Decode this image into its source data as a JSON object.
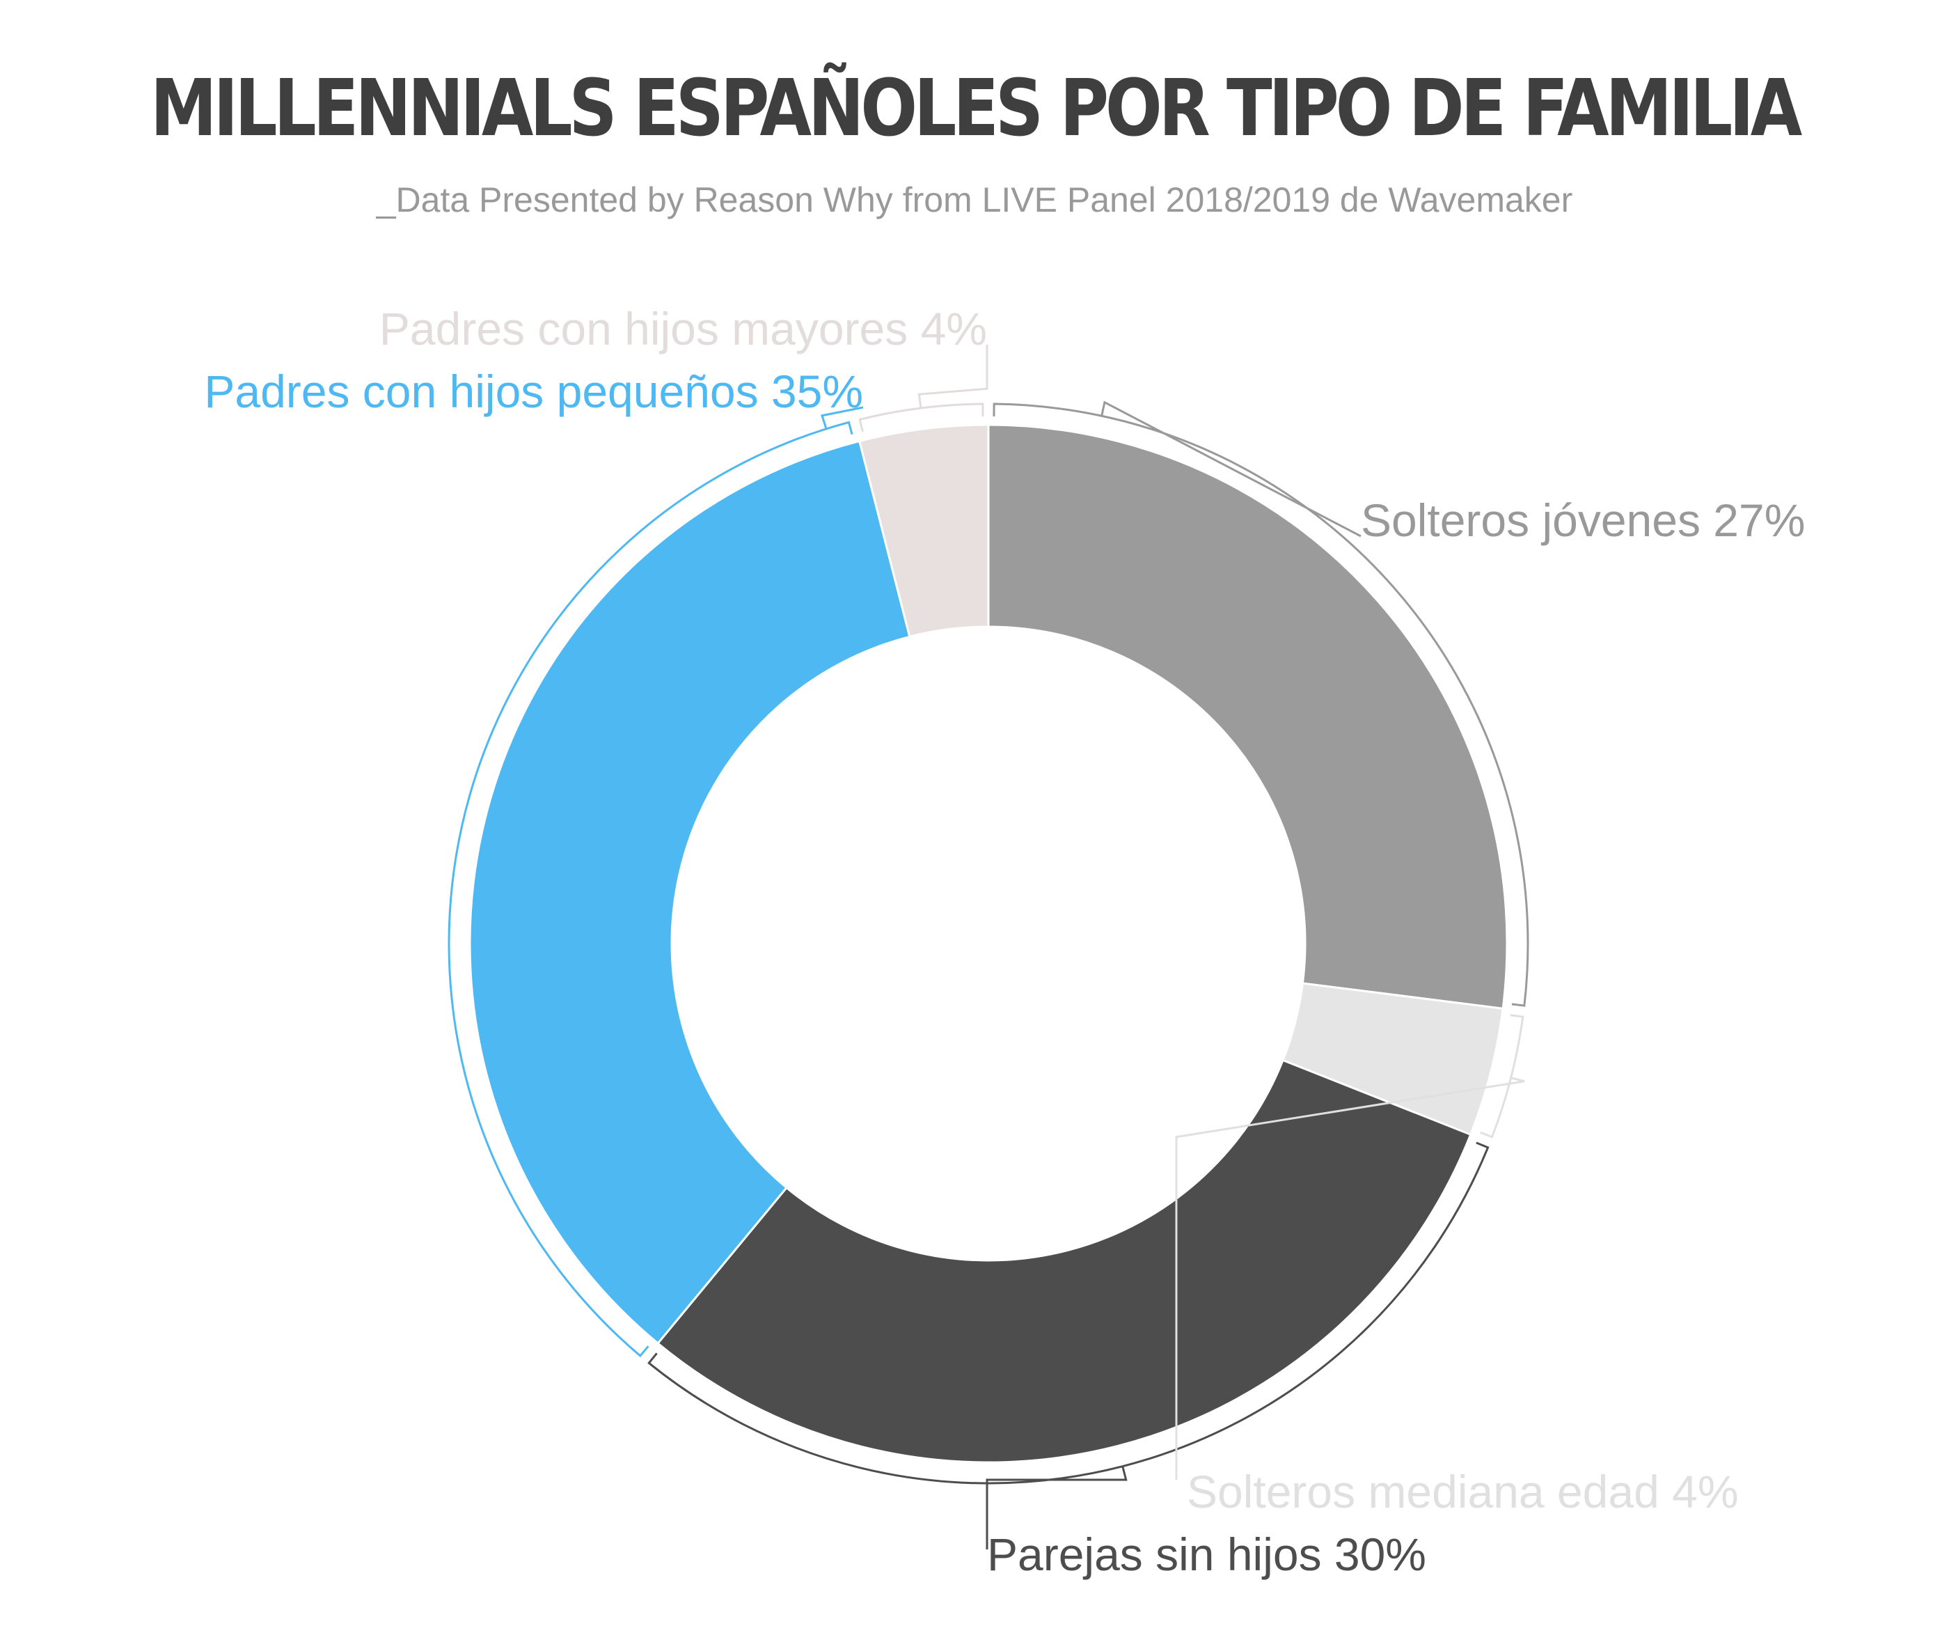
{
  "header": {
    "title": "MILLENNIALS ESPAÑOLES POR TIPO DE FAMILIA",
    "subtitle": "_Data Presented by Reason Why from LIVE Panel 2018/2019 de Wavemaker"
  },
  "chart_data": {
    "type": "pie",
    "variant": "donut",
    "title": "MILLENNIALS ESPAÑOLES POR TIPO DE FAMILIA",
    "subtitle": "_Data Presented by Reason Why from LIVE Panel 2018/2019 de Wavemaker",
    "categories": [
      "Solteros jóvenes",
      "Solteros mediana edad",
      "Parejas sin hijos",
      "Padres con hijos pequeños",
      "Padres con hijos mayores"
    ],
    "values": [
      27,
      4,
      30,
      35,
      4
    ],
    "unit": "%",
    "labels": [
      "Solteros jóvenes 27%",
      "Solteros mediana edad 4%",
      "Parejas sin hijos 30%",
      "Padres con hijos pequeños 35%",
      "Padres con hijos mayores 4%"
    ],
    "colors": [
      "#9b9b9b",
      "#e5e5e5",
      "#4d4d4d",
      "#4db8f2",
      "#e8e0df"
    ],
    "label_colors": [
      "#999999",
      "#e0e0e0",
      "#4d4d4d",
      "#4db8f2",
      "#e3dcdc"
    ],
    "start": "top, clockwise",
    "legend": "none"
  }
}
